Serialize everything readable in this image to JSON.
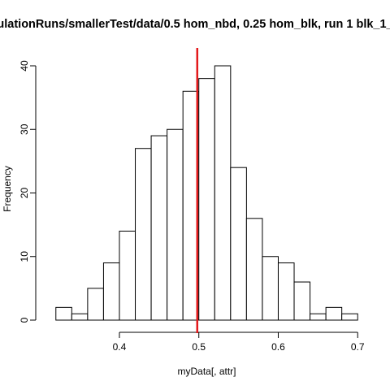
{
  "chart_data": {
    "type": "bar",
    "title": "ulationRuns/smallerTest/data/0.5 hom_nbd, 0.25 hom_blk, run 1 blk_1_",
    "xlabel": "myData[, attr]",
    "ylabel": "Frequency",
    "bin_width": 0.02,
    "bins": [
      {
        "start": 0.32,
        "end": 0.34,
        "count": 2
      },
      {
        "start": 0.34,
        "end": 0.36,
        "count": 1
      },
      {
        "start": 0.36,
        "end": 0.38,
        "count": 5
      },
      {
        "start": 0.38,
        "end": 0.4,
        "count": 9
      },
      {
        "start": 0.4,
        "end": 0.42,
        "count": 14
      },
      {
        "start": 0.42,
        "end": 0.44,
        "count": 27
      },
      {
        "start": 0.44,
        "end": 0.46,
        "count": 29
      },
      {
        "start": 0.46,
        "end": 0.48,
        "count": 30
      },
      {
        "start": 0.48,
        "end": 0.5,
        "count": 36
      },
      {
        "start": 0.5,
        "end": 0.52,
        "count": 38
      },
      {
        "start": 0.52,
        "end": 0.54,
        "count": 40
      },
      {
        "start": 0.54,
        "end": 0.56,
        "count": 24
      },
      {
        "start": 0.56,
        "end": 0.58,
        "count": 16
      },
      {
        "start": 0.58,
        "end": 0.6,
        "count": 10
      },
      {
        "start": 0.6,
        "end": 0.62,
        "count": 9
      },
      {
        "start": 0.62,
        "end": 0.64,
        "count": 6
      },
      {
        "start": 0.64,
        "end": 0.66,
        "count": 1
      },
      {
        "start": 0.66,
        "end": 0.68,
        "count": 2
      },
      {
        "start": 0.68,
        "end": 0.7,
        "count": 1
      }
    ],
    "xticks": [
      {
        "value": 0.4,
        "label": "0.4"
      },
      {
        "value": 0.5,
        "label": "0.5"
      },
      {
        "value": 0.6,
        "label": "0.6"
      },
      {
        "value": 0.7,
        "label": "0.7"
      }
    ],
    "yticks": [
      {
        "value": 0,
        "label": "0"
      },
      {
        "value": 10,
        "label": "10"
      },
      {
        "value": 20,
        "label": "20"
      },
      {
        "value": 30,
        "label": "30"
      },
      {
        "value": 40,
        "label": "40"
      }
    ],
    "xlim": [
      0.31,
      0.71
    ],
    "ylim": [
      0,
      40
    ],
    "reference_line": {
      "x": 0.498,
      "color": "#e31a1c"
    },
    "bar_fill": "#ffffff",
    "bar_stroke": "#000000",
    "grid": false
  }
}
